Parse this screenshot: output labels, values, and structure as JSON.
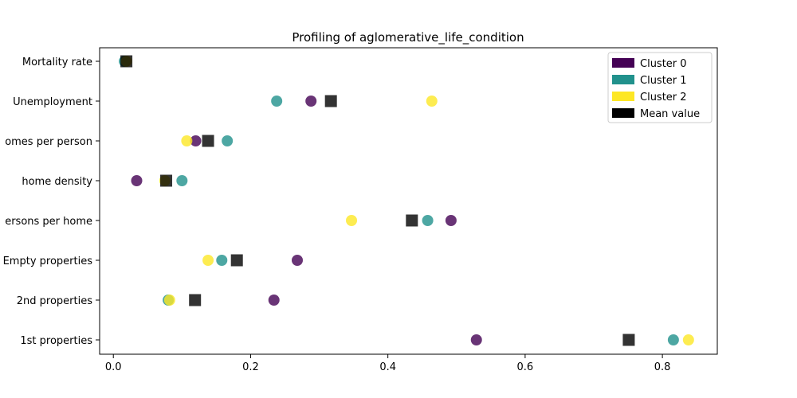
{
  "chart_data": {
    "type": "scatter",
    "title": "Profiling of aglomerative_life_condition",
    "xlabel": "",
    "ylabel": "",
    "xlim": [
      -0.02,
      0.88
    ],
    "x_ticks": [
      "0.0",
      "0.2",
      "0.4",
      "0.6",
      "0.8"
    ],
    "x_tick_values": [
      0.0,
      0.2,
      0.4,
      0.6,
      0.8
    ],
    "categories": [
      "Mortality rate",
      "Unemployment",
      "omes per person",
      "home density",
      "ersons per home",
      "Empty properties",
      "2nd properties",
      "1st properties"
    ],
    "series": [
      {
        "name": "Cluster 0",
        "color": "#440154",
        "marker": "circle",
        "values": [
          0.018,
          0.288,
          0.12,
          0.034,
          0.492,
          0.268,
          0.234,
          0.529
        ]
      },
      {
        "name": "Cluster 1",
        "color": "#21918c",
        "marker": "circle",
        "values": [
          0.016,
          0.238,
          0.166,
          0.1,
          0.458,
          0.158,
          0.08,
          0.816
        ]
      },
      {
        "name": "Cluster 2",
        "color": "#fde725",
        "marker": "circle",
        "values": [
          0.019,
          0.464,
          0.107,
          0.075,
          0.347,
          0.138,
          0.082,
          0.838
        ]
      },
      {
        "name": "Mean value",
        "color": "#000000",
        "marker": "square",
        "values": [
          0.019,
          0.317,
          0.138,
          0.077,
          0.435,
          0.18,
          0.119,
          0.751
        ]
      }
    ],
    "grid": false,
    "legend_position": "top-right"
  }
}
